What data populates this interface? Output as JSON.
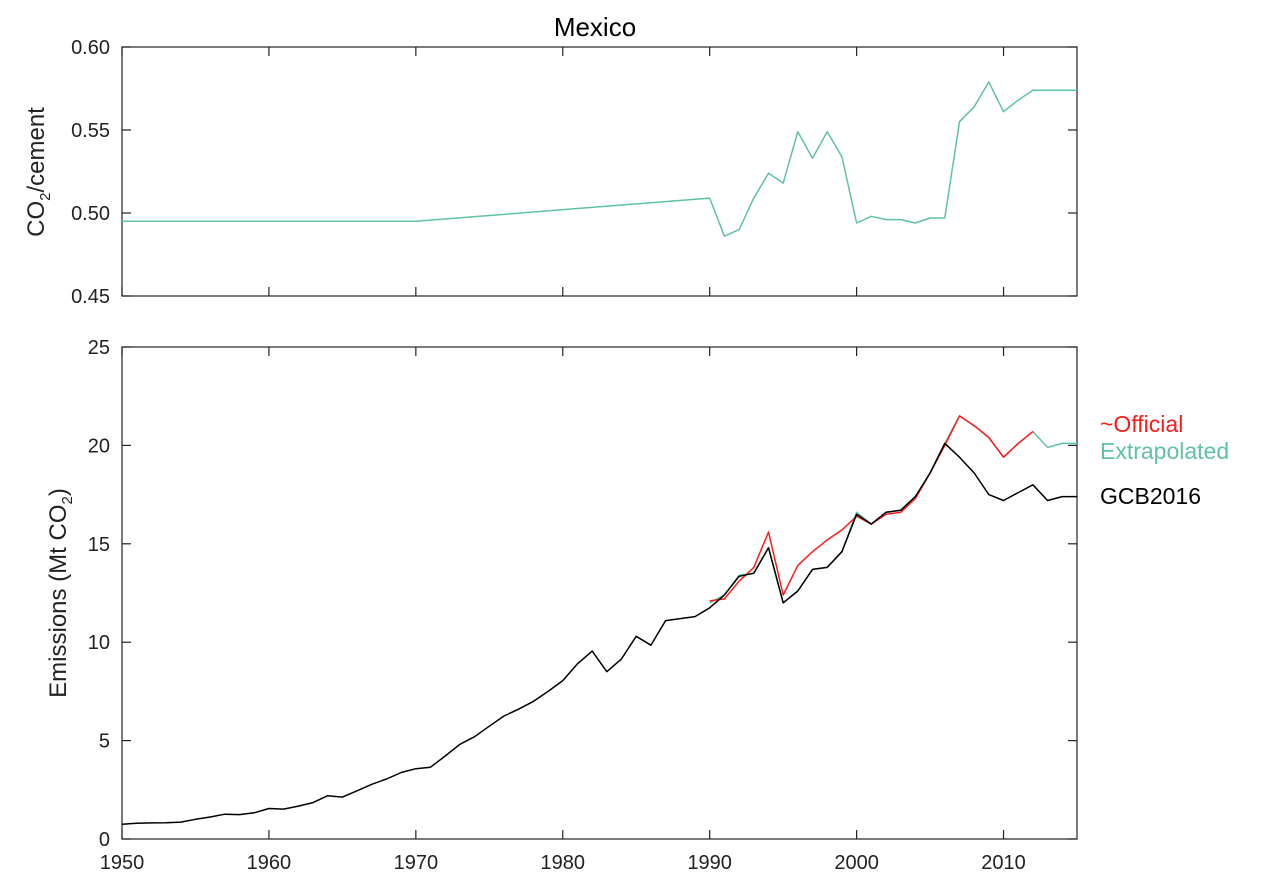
{
  "figure": {
    "title": "Mexico"
  },
  "chart_data": [
    {
      "type": "line",
      "title": "Mexico",
      "xlabel": "",
      "ylabel": {
        "main": "CO",
        "sub": "2",
        "rest": "/cement"
      },
      "xlim": [
        1950,
        2015
      ],
      "ylim": [
        0.45,
        0.6
      ],
      "xticks": [
        1950,
        1960,
        1970,
        1980,
        1990,
        2000,
        2010
      ],
      "yticks": [
        0.45,
        0.5,
        0.55,
        0.6
      ],
      "ytick_labels": [
        "0.45",
        "0.50",
        "0.55",
        "0.60"
      ],
      "grid": false,
      "series": [
        {
          "color": "#5fc3a0",
          "x": [
            1950,
            1970,
            1990,
            1991,
            1992,
            1993,
            1994,
            1995,
            1996,
            1997,
            1998,
            1999,
            2000,
            2001,
            2002,
            2003,
            2004,
            2005,
            2006,
            2007,
            2008,
            2009,
            2010,
            2011,
            2012,
            2013,
            2014,
            2015
          ],
          "y": [
            0.495,
            0.495,
            0.509,
            0.486,
            0.49,
            0.509,
            0.524,
            0.518,
            0.549,
            0.533,
            0.549,
            0.534,
            0.494,
            0.498,
            0.496,
            0.496,
            0.494,
            0.497,
            0.497,
            0.555,
            0.564,
            0.579,
            0.561,
            0.568,
            0.574,
            0.574,
            0.574,
            0.574
          ]
        }
      ]
    },
    {
      "type": "line",
      "xlabel": "",
      "ylabel": {
        "main": "Emissions (Mt CO",
        "sub": "2",
        "rest": ")"
      },
      "xlim": [
        1950,
        2015
      ],
      "ylim": [
        0,
        25
      ],
      "xticks": [
        1950,
        1960,
        1970,
        1980,
        1990,
        2000,
        2010
      ],
      "yticks": [
        0,
        5,
        10,
        15,
        20,
        25
      ],
      "grid": false,
      "legend_position": "right",
      "series": [
        {
          "name": "Extrapolated",
          "color": "#5fc3a0",
          "x": [
            1990,
            1991,
            1992,
            1993,
            1994,
            1995,
            1996,
            1997,
            1998,
            1999,
            2000,
            2001,
            2002,
            2003,
            2004,
            2005,
            2006,
            2007,
            2008,
            2009,
            2010,
            2011,
            2012,
            2013,
            2014,
            2015
          ],
          "y": [
            12.0,
            12.4,
            13.4,
            13.5,
            14.8,
            12.0,
            12.6,
            13.7,
            13.8,
            14.6,
            16.6,
            16.0,
            16.6,
            16.7,
            17.4,
            18.6,
            20.1,
            21.5,
            21.0,
            20.4,
            19.4,
            20.1,
            20.7,
            19.9,
            20.1,
            20.1
          ]
        },
        {
          "name": "~Official",
          "color": "#ff1a1a",
          "x": [
            1990,
            1991,
            1992,
            1993,
            1994,
            1995,
            1996,
            1997,
            1998,
            1999,
            2000,
            2001,
            2002,
            2003,
            2004,
            2005,
            2006,
            2007,
            2008,
            2009,
            2010,
            2011,
            2012
          ],
          "y": [
            12.1,
            12.2,
            13.1,
            13.8,
            15.6,
            12.4,
            13.9,
            14.6,
            15.2,
            15.7,
            16.4,
            16.0,
            16.5,
            16.6,
            17.3,
            18.6,
            20.0,
            21.5,
            21.0,
            20.4,
            19.4,
            20.1,
            20.7
          ]
        },
        {
          "name": "GCB2016",
          "color": "#000000",
          "x": [
            1950,
            1951,
            1952,
            1953,
            1954,
            1955,
            1956,
            1957,
            1958,
            1959,
            1960,
            1961,
            1962,
            1963,
            1964,
            1965,
            1966,
            1967,
            1968,
            1969,
            1970,
            1971,
            1972,
            1973,
            1974,
            1975,
            1976,
            1977,
            1978,
            1979,
            1980,
            1981,
            1982,
            1983,
            1984,
            1985,
            1986,
            1987,
            1988,
            1989,
            1990,
            1991,
            1992,
            1993,
            1994,
            1995,
            1996,
            1997,
            1998,
            1999,
            2000,
            2001,
            2002,
            2003,
            2004,
            2005,
            2006,
            2007,
            2008,
            2009,
            2010,
            2011,
            2012,
            2013,
            2014,
            2015
          ],
          "y": [
            0.75,
            0.8,
            0.82,
            0.83,
            0.86,
            1.0,
            1.12,
            1.26,
            1.24,
            1.33,
            1.55,
            1.52,
            1.67,
            1.85,
            2.2,
            2.13,
            2.45,
            2.78,
            3.05,
            3.38,
            3.57,
            3.65,
            4.22,
            4.81,
            5.2,
            5.73,
            6.25,
            6.6,
            6.99,
            7.5,
            8.05,
            8.9,
            9.55,
            8.5,
            9.15,
            10.3,
            9.85,
            11.1,
            11.2,
            11.3,
            11.75,
            12.4,
            13.35,
            13.5,
            14.8,
            12.0,
            12.6,
            13.7,
            13.8,
            14.6,
            16.5,
            16.0,
            16.6,
            16.7,
            17.4,
            18.6,
            20.1,
            19.4,
            18.6,
            17.5,
            17.2,
            17.6,
            18.0,
            17.2,
            17.4,
            17.4
          ]
        }
      ],
      "legend": [
        {
          "label": "~Official",
          "color": "#ff1a1a"
        },
        {
          "label": "Extrapolated",
          "color": "#5fc3a0"
        },
        {
          "label": "GCB2016",
          "color": "#000000"
        }
      ]
    }
  ]
}
